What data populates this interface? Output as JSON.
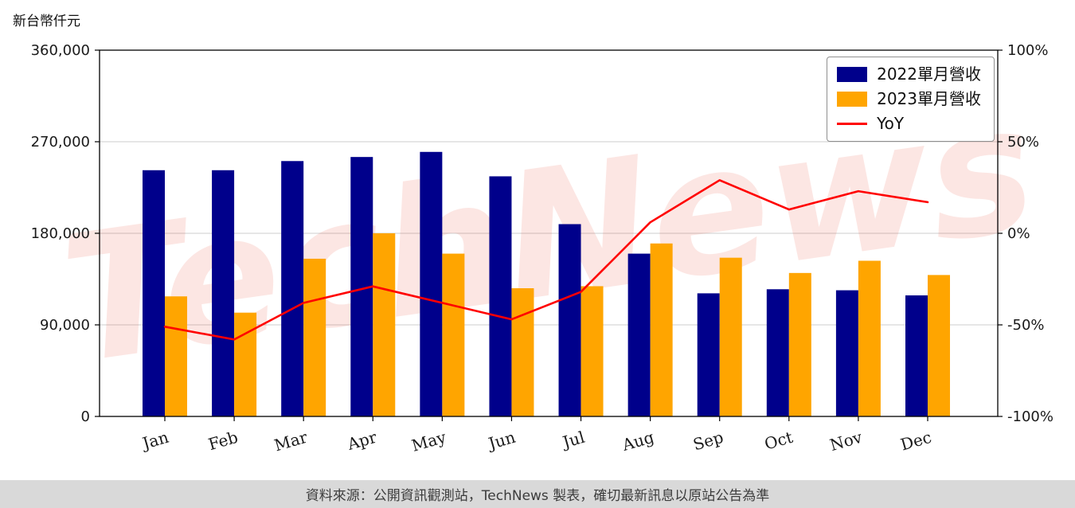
{
  "page": {
    "y_axis_title": "新台幣仟元",
    "watermark": "TechNews",
    "footer": "資料來源：公開資訊觀測站，TechNews 製表，確切最新訊息以原站公告為準"
  },
  "colors": {
    "bar_2022": "#00008B",
    "bar_2023": "#FFA500",
    "yoy_line": "#FF0000",
    "watermark": "#E74C3C",
    "grid": "#CCCCCC",
    "footer_bg": "#D9D9D9"
  },
  "chart_data": {
    "type": "bar",
    "title": "",
    "categories": [
      "Jan",
      "Feb",
      "Mar",
      "Apr",
      "May",
      "Jun",
      "Jul",
      "Aug",
      "Sep",
      "Oct",
      "Nov",
      "Dec"
    ],
    "series": [
      {
        "name": "2022單月營收",
        "type": "bar",
        "axis": "left",
        "color": "#00008B",
        "values": [
          242000,
          242000,
          251000,
          255000,
          260000,
          236000,
          189000,
          160000,
          121000,
          125000,
          124000,
          119000
        ]
      },
      {
        "name": "2023單月營收",
        "type": "bar",
        "axis": "left",
        "color": "#FFA500",
        "values": [
          118000,
          102000,
          155000,
          180000,
          160000,
          126000,
          128000,
          170000,
          156000,
          141000,
          153000,
          139000
        ]
      },
      {
        "name": "YoY",
        "type": "line",
        "axis": "right",
        "color": "#FF0000",
        "values": [
          -51,
          -58,
          -38,
          -29,
          -38,
          -47,
          -32,
          6,
          29,
          13,
          23,
          17
        ]
      }
    ],
    "left_axis": {
      "label": "新台幣仟元",
      "min": 0,
      "max": 360000,
      "tick_values": [
        0,
        90000,
        180000,
        270000,
        360000
      ],
      "ticks": [
        "0",
        "90,000",
        "180,000",
        "270,000",
        "360,000"
      ]
    },
    "right_axis": {
      "label": "",
      "min": -100,
      "max": 100,
      "tick_values": [
        -100,
        -50,
        0,
        50,
        100
      ],
      "ticks": [
        "-100%",
        "-50%",
        "0%",
        "50%",
        "100%"
      ]
    },
    "grid": true,
    "legend_position": "top-right"
  }
}
